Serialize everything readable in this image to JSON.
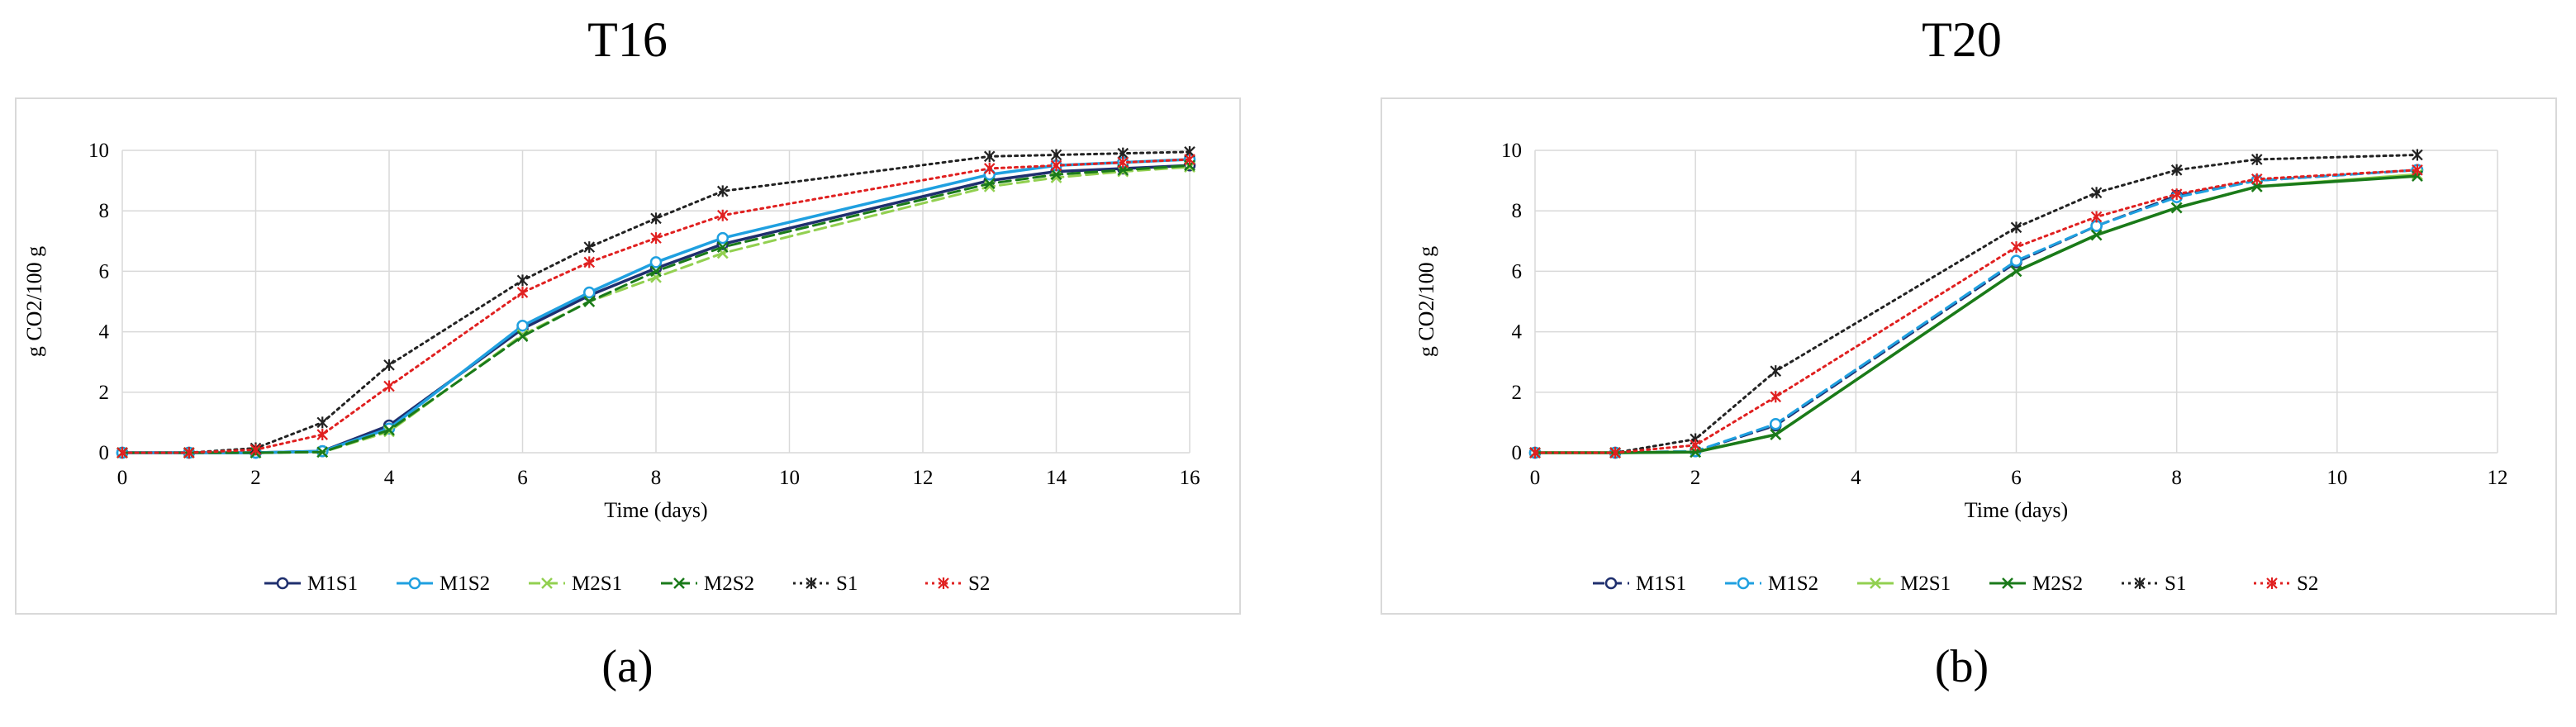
{
  "figure": {
    "panels": [
      {
        "title": "T16",
        "letter": "(a)"
      },
      {
        "title": "T20",
        "letter": "(b)"
      }
    ]
  },
  "chart_data": [
    {
      "type": "line",
      "title": "T16",
      "xlabel": "Time (days)",
      "ylabel": "g CO2/100 g",
      "xlim": [
        0,
        16
      ],
      "ylim": [
        0,
        10
      ],
      "xticks": [
        0,
        2,
        4,
        6,
        8,
        10,
        12,
        14,
        16
      ],
      "yticks": [
        0,
        2,
        4,
        6,
        8,
        10
      ],
      "grid": "horizontal and vertical",
      "legend": "bottom",
      "series": [
        {
          "name": "M1S1",
          "color": "#1f2f6e",
          "style": "solid",
          "marker": "circle",
          "x": [
            0,
            1,
            2,
            3,
            4,
            6,
            7,
            8,
            9,
            13,
            14,
            15,
            16
          ],
          "y": [
            0,
            0,
            0,
            0.05,
            0.9,
            4.1,
            5.2,
            6.1,
            6.9,
            9.0,
            9.3,
            9.4,
            9.5
          ]
        },
        {
          "name": "M1S2",
          "color": "#1fa0e0",
          "style": "solid",
          "marker": "circle",
          "x": [
            0,
            1,
            2,
            3,
            4,
            6,
            7,
            8,
            9,
            13,
            14,
            15,
            16
          ],
          "y": [
            0,
            0,
            0,
            0.05,
            0.8,
            4.2,
            5.3,
            6.3,
            7.1,
            9.2,
            9.5,
            9.6,
            9.7
          ]
        },
        {
          "name": "M2S1",
          "color": "#92d050",
          "style": "dashed",
          "marker": "x",
          "x": [
            0,
            1,
            2,
            3,
            4,
            6,
            7,
            8,
            9,
            13,
            14,
            15,
            16
          ],
          "y": [
            0,
            0,
            0,
            0.02,
            0.7,
            3.9,
            5.0,
            5.8,
            6.6,
            8.8,
            9.1,
            9.3,
            9.45
          ]
        },
        {
          "name": "M2S2",
          "color": "#1a7a1a",
          "style": "dashed",
          "marker": "x",
          "x": [
            0,
            1,
            2,
            3,
            4,
            6,
            7,
            8,
            9,
            13,
            14,
            15,
            16
          ],
          "y": [
            0,
            0,
            0,
            0.02,
            0.75,
            3.85,
            5.0,
            6.0,
            6.8,
            8.9,
            9.2,
            9.35,
            9.5
          ]
        },
        {
          "name": "S1",
          "color": "#222222",
          "style": "dotted",
          "marker": "star",
          "x": [
            0,
            1,
            2,
            3,
            4,
            6,
            7,
            8,
            9,
            13,
            14,
            15,
            16
          ],
          "y": [
            0,
            0,
            0.15,
            1.0,
            2.9,
            5.7,
            6.8,
            7.75,
            8.65,
            9.8,
            9.85,
            9.9,
            9.95
          ]
        },
        {
          "name": "S2",
          "color": "#e02020",
          "style": "dotted",
          "marker": "star",
          "x": [
            0,
            1,
            2,
            3,
            4,
            6,
            7,
            8,
            9,
            13,
            14,
            15,
            16
          ],
          "y": [
            0,
            0,
            0.1,
            0.6,
            2.2,
            5.3,
            6.3,
            7.1,
            7.85,
            9.4,
            9.5,
            9.6,
            9.7
          ]
        }
      ]
    },
    {
      "type": "line",
      "title": "T20",
      "xlabel": "Time (days)",
      "ylabel": "g CO2/100 g",
      "xlim": [
        0,
        12
      ],
      "ylim": [
        0,
        10
      ],
      "xticks": [
        0,
        2,
        4,
        6,
        8,
        10,
        12
      ],
      "yticks": [
        0,
        2,
        4,
        6,
        8,
        10
      ],
      "grid": "horizontal and vertical",
      "legend": "bottom",
      "series": [
        {
          "name": "M1S1",
          "color": "#1f2f6e",
          "style": "dashed",
          "marker": "circle",
          "x": [
            0,
            1,
            2,
            3,
            6,
            7,
            8,
            9,
            11
          ],
          "y": [
            0,
            0,
            0.05,
            0.9,
            6.3,
            7.5,
            8.5,
            9.0,
            9.35
          ]
        },
        {
          "name": "M1S2",
          "color": "#1fa0e0",
          "style": "dashed",
          "marker": "circle",
          "x": [
            0,
            1,
            2,
            3,
            6,
            7,
            8,
            9,
            11
          ],
          "y": [
            0,
            0,
            0.05,
            0.95,
            6.35,
            7.5,
            8.45,
            9.0,
            9.35
          ]
        },
        {
          "name": "M2S1",
          "color": "#92d050",
          "style": "solid",
          "marker": "x",
          "x": [
            0,
            1,
            2,
            3,
            6,
            7,
            8,
            9,
            11
          ],
          "y": [
            0,
            0,
            0.02,
            0.6,
            6.0,
            7.2,
            8.1,
            8.8,
            9.2
          ]
        },
        {
          "name": "M2S2",
          "color": "#1a7a1a",
          "style": "solid",
          "marker": "x",
          "x": [
            0,
            1,
            2,
            3,
            6,
            7,
            8,
            9,
            11
          ],
          "y": [
            0,
            0,
            0.02,
            0.6,
            6.0,
            7.2,
            8.1,
            8.8,
            9.15
          ]
        },
        {
          "name": "S1",
          "color": "#222222",
          "style": "dotted",
          "marker": "star",
          "x": [
            0,
            1,
            2,
            3,
            6,
            7,
            8,
            9,
            11
          ],
          "y": [
            0,
            0,
            0.45,
            2.7,
            7.45,
            8.6,
            9.35,
            9.7,
            9.85
          ]
        },
        {
          "name": "S2",
          "color": "#e02020",
          "style": "dotted",
          "marker": "star",
          "x": [
            0,
            1,
            2,
            3,
            6,
            7,
            8,
            9,
            11
          ],
          "y": [
            0,
            0,
            0.25,
            1.85,
            6.8,
            7.8,
            8.55,
            9.05,
            9.35
          ]
        }
      ]
    }
  ]
}
